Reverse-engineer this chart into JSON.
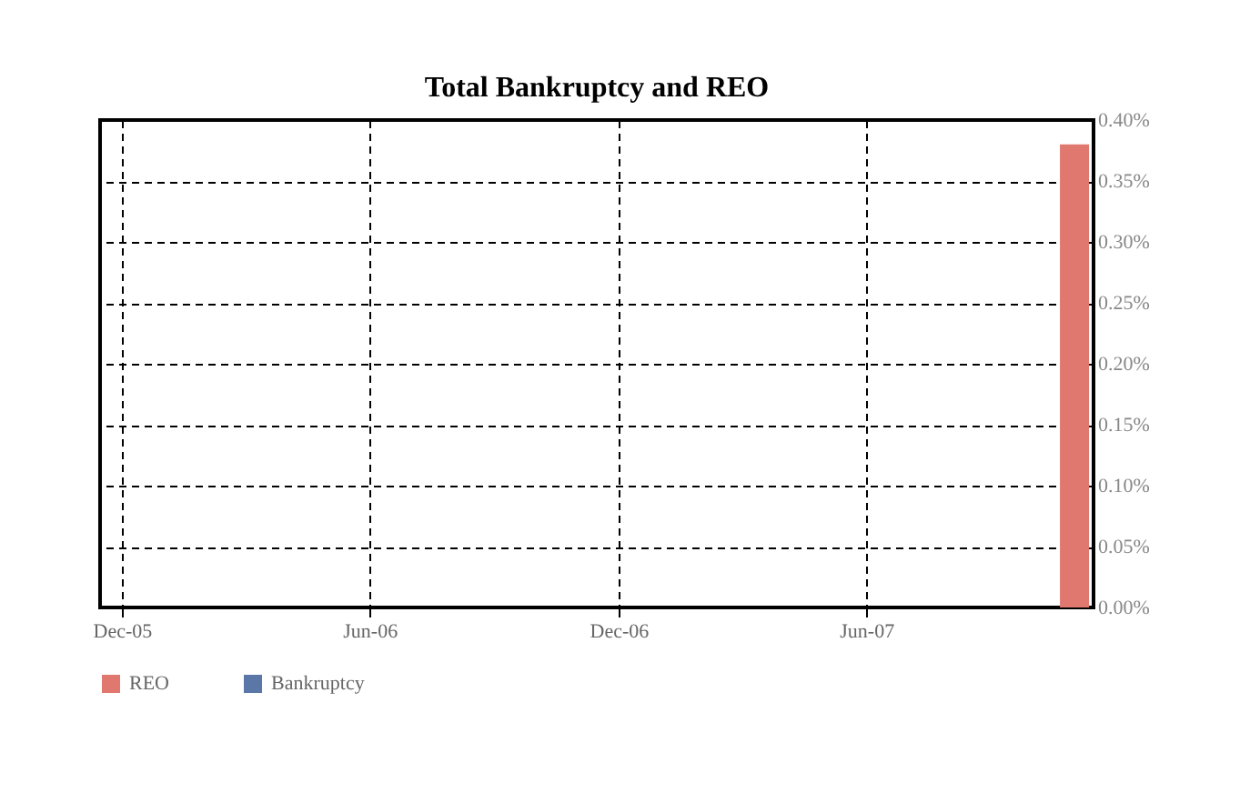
{
  "chart_data": {
    "type": "bar",
    "title": "Total Bankruptcy and REO",
    "x": [
      "2007-11-01"
    ],
    "series": [
      {
        "name": "REO",
        "color": "#e07870",
        "values": [
          0.38
        ]
      },
      {
        "name": "Bankruptcy",
        "color": "#5b77a8",
        "values": [
          null
        ]
      }
    ],
    "xlim": [
      "2005-11-15",
      "2007-11-15"
    ],
    "xticks": [
      {
        "value": "2005-12",
        "label": "Dec-05"
      },
      {
        "value": "2006-06",
        "label": "Jun-06"
      },
      {
        "value": "2006-12",
        "label": "Dec-06"
      },
      {
        "value": "2007-06",
        "label": "Jun-07"
      }
    ],
    "ylim": [
      0,
      0.4
    ],
    "yticks": [
      {
        "value": 0,
        "label": "0.00%"
      },
      {
        "value": 0.05,
        "label": "0.05%"
      },
      {
        "value": 0.1,
        "label": "0.10%"
      },
      {
        "value": 0.15,
        "label": "0.15%"
      },
      {
        "value": 0.2,
        "label": "0.20%"
      },
      {
        "value": 0.25,
        "label": "0.25%"
      },
      {
        "value": 0.3,
        "label": "0.30%"
      },
      {
        "value": 0.35,
        "label": "0.35%"
      },
      {
        "value": 0.4,
        "label": "0.40%"
      }
    ],
    "grid": true,
    "legend": "bottom"
  }
}
